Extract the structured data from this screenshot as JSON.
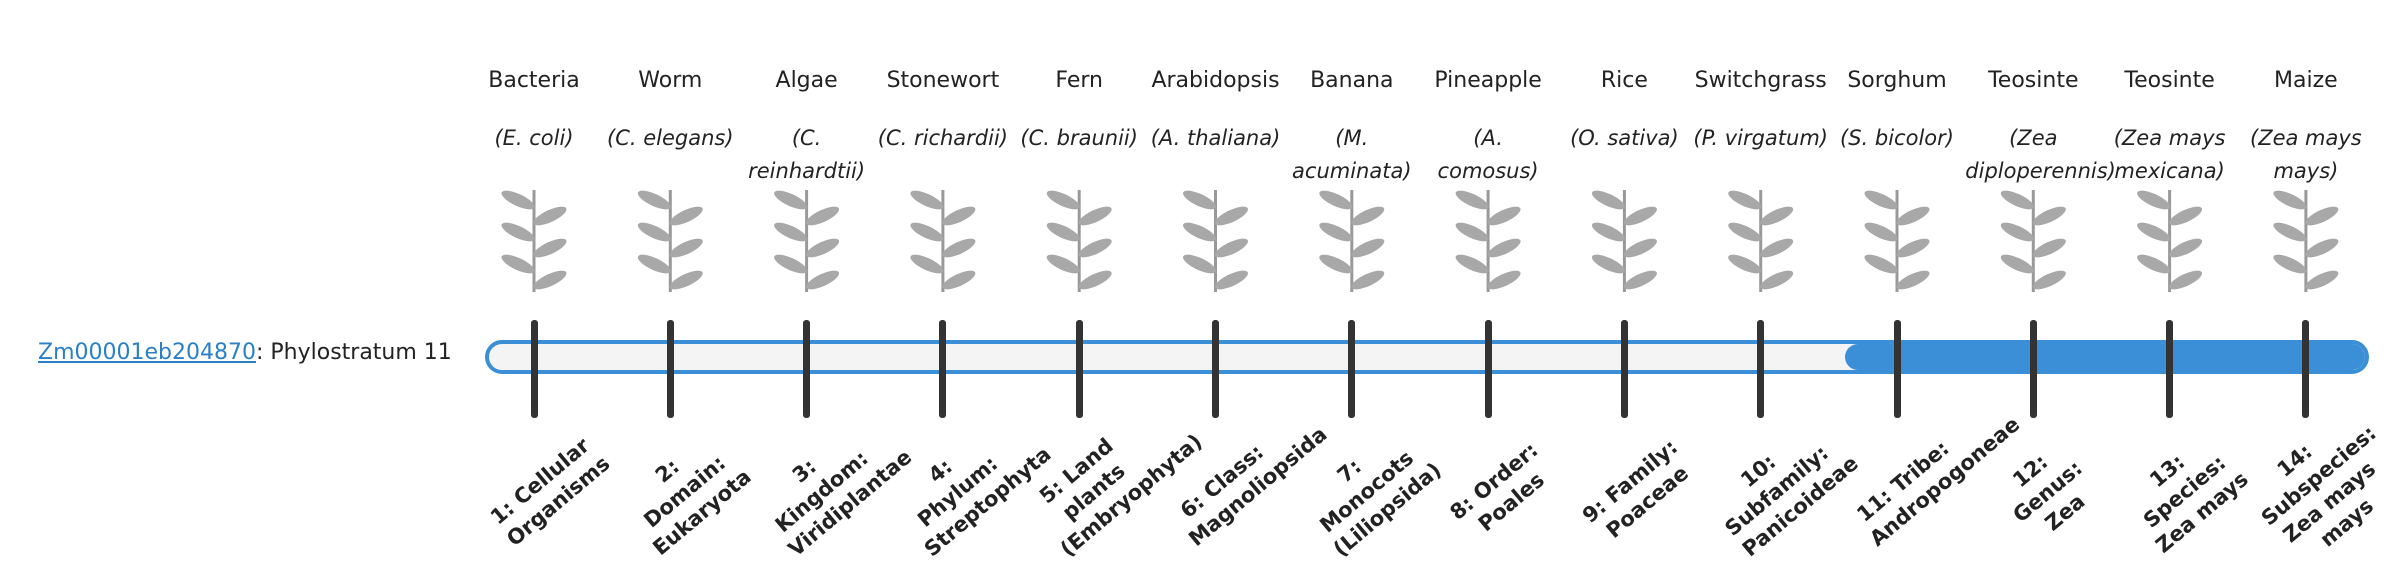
{
  "gene": {
    "id": "Zm00001eb204870",
    "label": ": Phylostratum 11",
    "phylostratum": 11
  },
  "strata": [
    {
      "organism": "Bacteria",
      "species": "(E. coli)",
      "label": "1: Cellular Organisms"
    },
    {
      "organism": "Worm",
      "species": "(C. elegans)",
      "label": "2: Domain: Eukaryota"
    },
    {
      "organism": "Algae",
      "species": "(C. reinhardtii)",
      "label": "3: Kingdom: Viridiplantae"
    },
    {
      "organism": "Stonewort",
      "species": "(C. richardii)",
      "label": "4: Phylum: Streptophyta"
    },
    {
      "organism": "Fern",
      "species": "(C. braunii)",
      "label": "5: Land plants (Embryophyta)"
    },
    {
      "organism": "Arabidopsis",
      "species": "(A. thaliana)",
      "label": "6: Class: Magnoliopsida"
    },
    {
      "organism": "Banana",
      "species": "(M. acuminata)",
      "label": "7: Monocots (Liliopsida)"
    },
    {
      "organism": "Pineapple",
      "species": "(A. comosus)",
      "label": "8: Order: Poales"
    },
    {
      "organism": "Rice",
      "species": "(O. sativa)",
      "label": "9: Family: Poaceae"
    },
    {
      "organism": "Switchgrass",
      "species": "(P. virgatum)",
      "label": "10: Subfamily: Panicoideae"
    },
    {
      "organism": "Sorghum",
      "species": "(S. bicolor)",
      "label": "11: Tribe: Andropogoneae"
    },
    {
      "organism": "Teosinte",
      "species": "(Zea diploperennis)",
      "label": "12: Genus: Zea"
    },
    {
      "organism": "Teosinte",
      "species": "(Zea mays mexicana)",
      "label": "13: Species: Zea mays"
    },
    {
      "organism": "Maize",
      "species": "(Zea mays mays)",
      "label": "14: Subspecies: Zea mays mays"
    }
  ]
}
